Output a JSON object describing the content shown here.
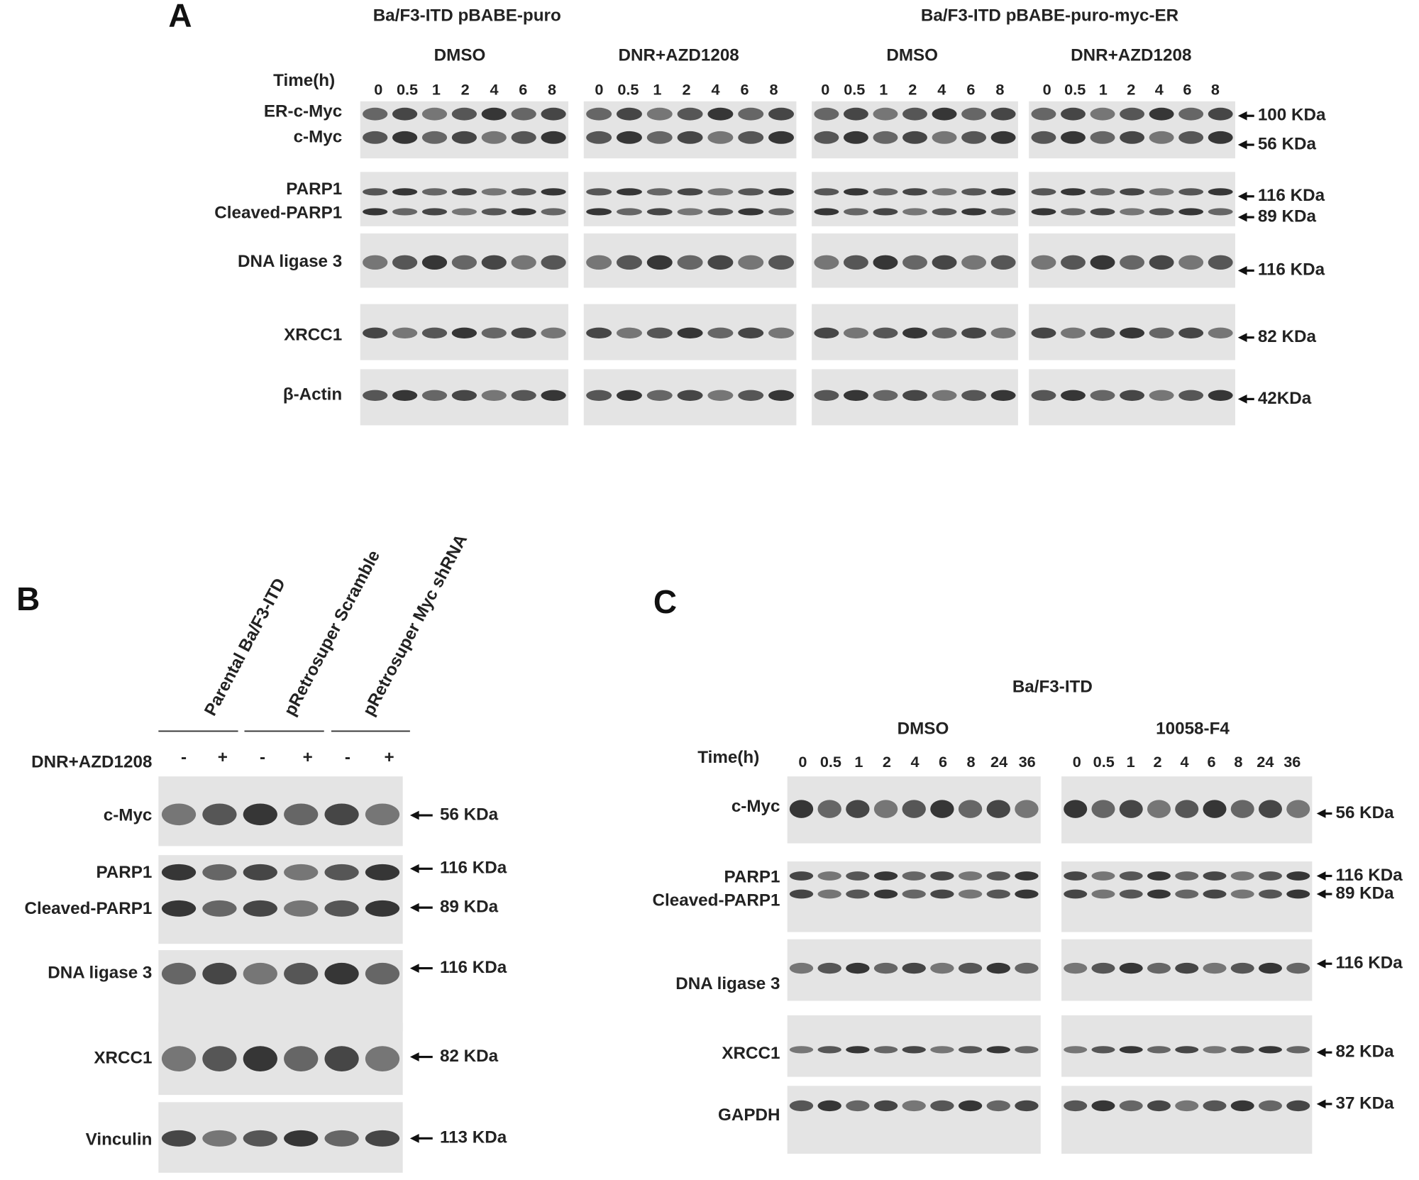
{
  "panel_a": {
    "letter": "A",
    "cell_lines": [
      "Ba/F3-ITD pBABE-puro",
      "Ba/F3-ITD pBABE-puro-myc-ER"
    ],
    "treatments": [
      "DMSO",
      "DNR+AZD1208",
      "DMSO",
      "DNR+AZD1208"
    ],
    "time_label": "Time(h)",
    "timepoints": [
      "0",
      "0.5",
      "1",
      "2",
      "4",
      "6",
      "8"
    ],
    "proteins": [
      "ER-c-Myc",
      "c-Myc",
      "PARP1",
      "Cleaved-PARP1",
      "DNA ligase 3",
      "XRCC1",
      "β-Actin"
    ],
    "sizes": [
      "100 KDa",
      "56 KDa",
      "116 KDa",
      "89 KDa",
      "116 KDa",
      "82 KDa",
      "42KDa"
    ]
  },
  "panel_b": {
    "letter": "B",
    "conditions": [
      "Parental Ba/F3-ITD",
      "pRetrosuper Scramble",
      "pRetrosuper Myc shRNA"
    ],
    "treatment": "DNR+AZD1208",
    "signs": [
      "-",
      "+",
      "-",
      "+",
      "-",
      "+"
    ],
    "proteins": [
      "c-Myc",
      "PARP1",
      "Cleaved-PARP1",
      "DNA ligase 3",
      "XRCC1",
      "Vinculin"
    ],
    "sizes": [
      "56 KDa",
      "116 KDa",
      "89 KDa",
      "116 KDa",
      "82 KDa",
      "113 KDa"
    ]
  },
  "panel_c": {
    "letter": "C",
    "cell_line": "Ba/F3-ITD",
    "treatments": [
      "DMSO",
      "10058-F4"
    ],
    "time_label": "Time(h)",
    "timepoints": [
      "0",
      "0.5",
      "1",
      "2",
      "4",
      "6",
      "8",
      "24",
      "36"
    ],
    "proteins": [
      "c-Myc",
      "PARP1",
      "Cleaved-PARP1",
      "DNA ligase 3",
      "XRCC1",
      "GAPDH"
    ],
    "sizes": [
      "56 KDa",
      "116 KDa",
      "89 KDa",
      "116 KDa",
      "82 KDa",
      "37 KDa"
    ]
  }
}
